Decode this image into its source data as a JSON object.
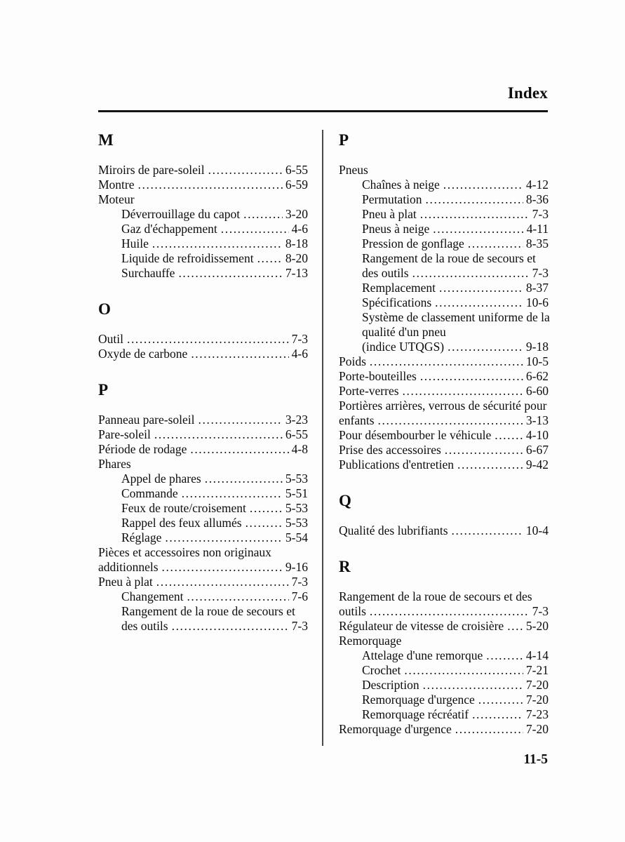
{
  "page": {
    "title": "Index",
    "page_number": "11-5"
  },
  "colors": {
    "background": "#fdfdfd",
    "text": "#0d0d0d",
    "rule": "#141414",
    "divider": "#4a4a4a"
  },
  "columns": [
    {
      "sections": [
        {
          "letter": "M",
          "entries": [
            {
              "label": "Miroirs de pare-soleil",
              "page": "6-55",
              "indent": 0
            },
            {
              "label": "Montre",
              "page": "6-59",
              "indent": 0
            },
            {
              "label": "Moteur",
              "page": null,
              "indent": 0
            },
            {
              "label": "Déverrouillage du capot",
              "page": "3-20",
              "indent": 1
            },
            {
              "label": "Gaz d'échappement",
              "page": "4-6",
              "indent": 1
            },
            {
              "label": "Huile",
              "page": "8-18",
              "indent": 1
            },
            {
              "label": "Liquide de refroidissement",
              "page": "8-20",
              "indent": 1
            },
            {
              "label": "Surchauffe",
              "page": "7-13",
              "indent": 1
            }
          ]
        },
        {
          "letter": "O",
          "entries": [
            {
              "label": "Outil",
              "page": "7-3",
              "indent": 0
            },
            {
              "label": "Oxyde de carbone",
              "page": "4-6",
              "indent": 0
            }
          ]
        },
        {
          "letter": "P",
          "entries": [
            {
              "label": "Panneau pare-soleil",
              "page": "3-23",
              "indent": 0
            },
            {
              "label": "Pare-soleil",
              "page": "6-55",
              "indent": 0
            },
            {
              "label": "Période de rodage",
              "page": "4-8",
              "indent": 0
            },
            {
              "label": "Phares",
              "page": null,
              "indent": 0
            },
            {
              "label": "Appel de phares",
              "page": "5-53",
              "indent": 1
            },
            {
              "label": "Commande",
              "page": "5-51",
              "indent": 1
            },
            {
              "label": "Feux de route/croisement",
              "page": "5-53",
              "indent": 1
            },
            {
              "label": "Rappel des feux allumés",
              "page": "5-53",
              "indent": 1
            },
            {
              "label": "Réglage",
              "page": "5-54",
              "indent": 1
            },
            {
              "pre_lines": [
                "Pièces et accessoires non originaux"
              ],
              "label": "additionnels",
              "page": "9-16",
              "indent": 0
            },
            {
              "label": "Pneu à plat",
              "page": "7-3",
              "indent": 0
            },
            {
              "label": "Changement",
              "page": "7-6",
              "indent": 1
            },
            {
              "pre_lines": [
                "Rangement de la roue de secours et"
              ],
              "label": "des outils",
              "page": "7-3",
              "indent": 1
            }
          ]
        }
      ]
    },
    {
      "sections": [
        {
          "letter": "P",
          "entries": [
            {
              "label": "Pneus",
              "page": null,
              "indent": 0
            },
            {
              "label": "Chaînes à neige",
              "page": "4-12",
              "indent": 1
            },
            {
              "label": "Permutation",
              "page": "8-36",
              "indent": 1
            },
            {
              "label": "Pneu à plat",
              "page": "7-3",
              "indent": 1
            },
            {
              "label": "Pneus à neige",
              "page": "4-11",
              "indent": 1
            },
            {
              "label": "Pression de gonflage",
              "page": "8-35",
              "indent": 1
            },
            {
              "pre_lines": [
                "Rangement de la roue de secours et"
              ],
              "label": "des outils",
              "page": "7-3",
              "indent": 1
            },
            {
              "label": "Remplacement",
              "page": "8-37",
              "indent": 1
            },
            {
              "label": "Spécifications",
              "page": "10-6",
              "indent": 1
            },
            {
              "pre_lines": [
                "Système de classement uniforme de la",
                "qualité d'un pneu"
              ],
              "label": "(indice UTQGS)",
              "page": "9-18",
              "indent": 1
            },
            {
              "label": "Poids",
              "page": "10-5",
              "indent": 0
            },
            {
              "label": "Porte-bouteilles",
              "page": "6-62",
              "indent": 0
            },
            {
              "label": "Porte-verres",
              "page": "6-60",
              "indent": 0
            },
            {
              "pre_lines": [
                "Portières arrières, verrous de sécurité pour"
              ],
              "label": "enfants",
              "page": "3-13",
              "indent": 0
            },
            {
              "label": "Pour désembourber le véhicule",
              "page": "4-10",
              "indent": 0
            },
            {
              "label": "Prise des accessoires",
              "page": "6-67",
              "indent": 0
            },
            {
              "label": "Publications d'entretien",
              "page": "9-42",
              "indent": 0
            }
          ]
        },
        {
          "letter": "Q",
          "entries": [
            {
              "label": "Qualité des lubrifiants",
              "page": "10-4",
              "indent": 0
            }
          ]
        },
        {
          "letter": "R",
          "entries": [
            {
              "pre_lines": [
                "Rangement de la roue de secours et des"
              ],
              "label": "outils",
              "page": "7-3",
              "indent": 0
            },
            {
              "label": "Régulateur de vitesse de croisière",
              "page": "5-20",
              "indent": 0
            },
            {
              "label": "Remorquage",
              "page": null,
              "indent": 0
            },
            {
              "label": "Attelage d'une remorque",
              "page": "4-14",
              "indent": 1
            },
            {
              "label": "Crochet",
              "page": "7-21",
              "indent": 1
            },
            {
              "label": "Description",
              "page": "7-20",
              "indent": 1
            },
            {
              "label": "Remorquage d'urgence",
              "page": "7-20",
              "indent": 1
            },
            {
              "label": "Remorquage récréatif",
              "page": "7-23",
              "indent": 1
            },
            {
              "label": "Remorquage d'urgence",
              "page": "7-20",
              "indent": 0
            }
          ]
        }
      ]
    }
  ]
}
